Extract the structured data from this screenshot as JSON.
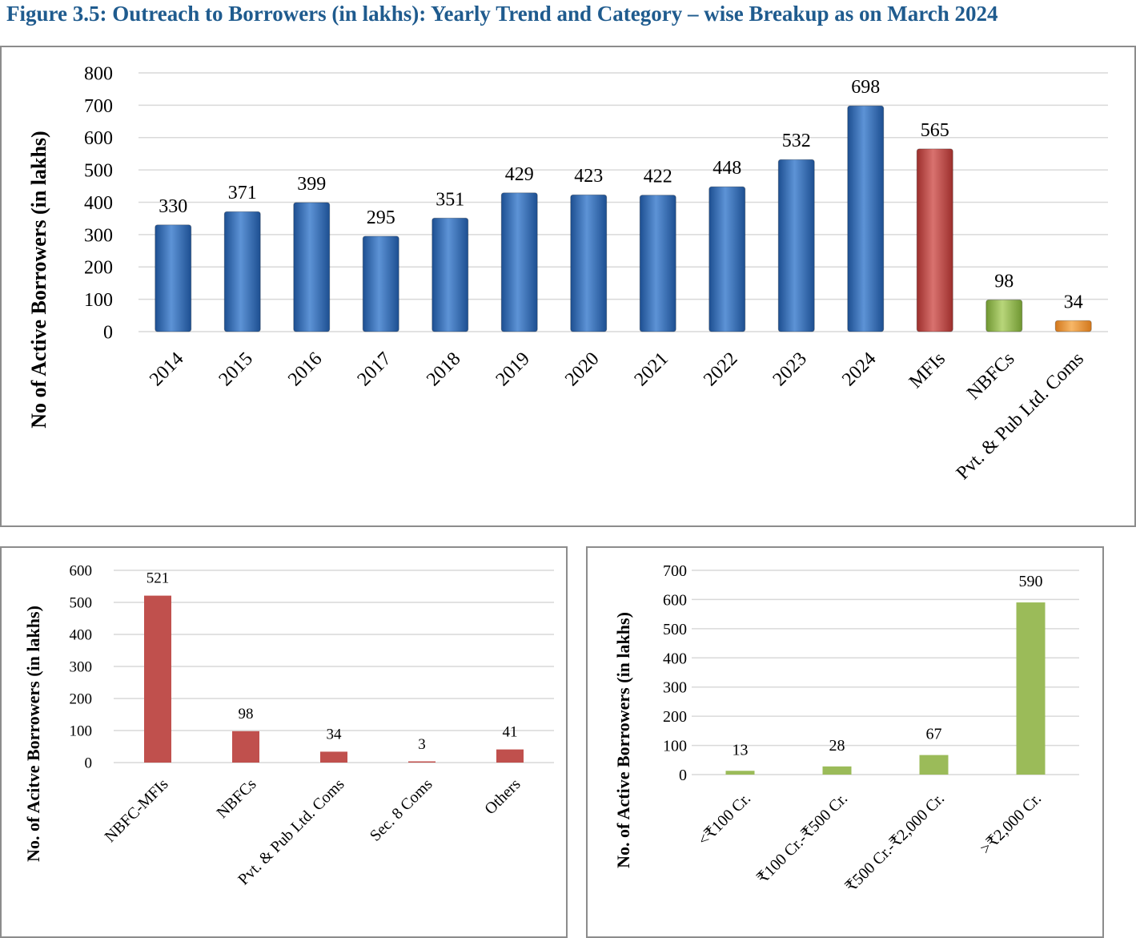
{
  "title": "Figure 3.5: Outreach to Borrowers (in lakhs): Yearly Trend and Category – wise Breakup as on March 2024",
  "colors": {
    "title": "#1f5b8e",
    "blue": "#2e64ad",
    "red_top": "#c0504d",
    "green_top": "#9bbb59",
    "orange_top": "#f39c3b",
    "red_flat": "#c0504d",
    "green_flat": "#9bbb59"
  },
  "chart_data": [
    {
      "type": "bar",
      "ylabel": "No of Active Borrowers (in lakhs)",
      "ylim": [
        0,
        800
      ],
      "yticks": [
        0,
        100,
        200,
        300,
        400,
        500,
        600,
        700,
        800
      ],
      "grid": true,
      "categories": [
        "2014",
        "2015",
        "2016",
        "2017",
        "2018",
        "2019",
        "2020",
        "2021",
        "2022",
        "2023",
        "2024",
        "MFIs",
        "NBFCs",
        "Pvt. & Pub Ltd. Coms"
      ],
      "values": [
        330,
        371,
        399,
        295,
        351,
        429,
        423,
        422,
        448,
        532,
        698,
        565,
        98,
        34
      ],
      "data_labels": [
        "330",
        "371",
        "399",
        "295",
        "351",
        "429",
        "423",
        "422",
        "448",
        "532",
        "698",
        "565",
        "98",
        "34"
      ],
      "bar_colors": [
        "blue",
        "blue",
        "blue",
        "blue",
        "blue",
        "blue",
        "blue",
        "blue",
        "blue",
        "blue",
        "blue",
        "red",
        "green",
        "orange"
      ]
    },
    {
      "type": "bar",
      "ylabel": "No. of Acitve Borrowers (in lakhs)",
      "ylim": [
        0,
        600
      ],
      "yticks": [
        0,
        100,
        200,
        300,
        400,
        500,
        600
      ],
      "grid": true,
      "categories": [
        "NBFC-MFIs",
        "NBFCs",
        "Pvt. & Pub Ltd. Coms",
        "Sec. 8 Coms",
        "Others"
      ],
      "values": [
        521,
        98,
        34,
        3,
        41
      ],
      "data_labels": [
        "521",
        "98",
        "34",
        "3",
        "41"
      ]
    },
    {
      "type": "bar",
      "ylabel": "No. of Active Borrowers (in lakhs)",
      "ylim": [
        0,
        700
      ],
      "yticks": [
        0,
        100,
        200,
        300,
        400,
        500,
        600,
        700
      ],
      "grid": true,
      "categories": [
        "<₹100 Cr.",
        "₹100 Cr.-₹500 Cr.",
        "₹500 Cr.-₹2,000 Cr.",
        ">₹2,000 Cr."
      ],
      "values": [
        13,
        28,
        67,
        590
      ],
      "data_labels": [
        "13",
        "28",
        "67",
        "590"
      ]
    }
  ]
}
